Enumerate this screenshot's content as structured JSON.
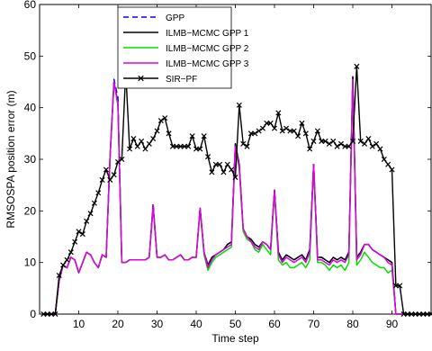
{
  "chart_data": {
    "type": "line",
    "title": "",
    "xlabel": "Time step",
    "ylabel": "RMSOSPA position error (m)",
    "xlim": [
      0,
      100
    ],
    "ylim": [
      0,
      60
    ],
    "xticks": [
      10,
      20,
      30,
      40,
      50,
      60,
      70,
      80,
      90
    ],
    "yticks": [
      0,
      10,
      20,
      30,
      40,
      50,
      60
    ],
    "grid": false,
    "legend_position": "top-center",
    "x": [
      1,
      2,
      3,
      4,
      5,
      6,
      7,
      8,
      9,
      10,
      11,
      12,
      13,
      14,
      15,
      16,
      17,
      18,
      19,
      20,
      21,
      22,
      23,
      24,
      25,
      26,
      27,
      28,
      29,
      30,
      31,
      32,
      33,
      34,
      35,
      36,
      37,
      38,
      39,
      40,
      41,
      42,
      43,
      44,
      45,
      46,
      47,
      48,
      49,
      50,
      51,
      52,
      53,
      54,
      55,
      56,
      57,
      58,
      59,
      60,
      61,
      62,
      63,
      64,
      65,
      66,
      67,
      68,
      69,
      70,
      71,
      72,
      73,
      74,
      75,
      76,
      77,
      78,
      79,
      80,
      81,
      82,
      83,
      84,
      85,
      86,
      87,
      88,
      89,
      90,
      91,
      92,
      93,
      94,
      95,
      96,
      97,
      98,
      99,
      100
    ],
    "series": [
      {
        "name": "GPP",
        "color": "#0000ff",
        "dash": "dashed",
        "marker": "none",
        "values": [
          0,
          0,
          0,
          0,
          6.5,
          9.5,
          9,
          11,
          10.5,
          8,
          10,
          12,
          11.5,
          10,
          9,
          11.5,
          11,
          30.5,
          45.5,
          42,
          10,
          10,
          10.5,
          10.5,
          10.5,
          10.5,
          10.5,
          11,
          21.5,
          11,
          11,
          11.5,
          10.5,
          10.5,
          11,
          11.5,
          10.5,
          10.5,
          11,
          11,
          20.5,
          12,
          9.5,
          11,
          11.5,
          12,
          12.5,
          13.5,
          14,
          33,
          29,
          16.5,
          15,
          14.5,
          13.5,
          13,
          14,
          13.5,
          12.5,
          24,
          12,
          10.5,
          11.5,
          11,
          10.5,
          11,
          11.5,
          10.5,
          12.5,
          29,
          11,
          11,
          10.5,
          10,
          11,
          10.5,
          11,
          10.5,
          12,
          46,
          11,
          12,
          13.5,
          13.5,
          12.5,
          12,
          11.5,
          11,
          10.5,
          10,
          0,
          0,
          0,
          0,
          0,
          0,
          0,
          0,
          0,
          0
        ]
      },
      {
        "name": "ILMB−MCMC GPP 1",
        "color": "#000000",
        "dash": "solid",
        "marker": "none",
        "values": [
          0,
          0,
          0,
          0,
          6.5,
          9.5,
          9,
          11,
          10.5,
          8,
          10,
          12,
          11.5,
          10,
          9,
          11.5,
          11,
          30.5,
          45,
          41,
          10,
          10,
          10.5,
          10.5,
          10.5,
          10.5,
          10.5,
          11,
          21,
          11,
          11,
          11.5,
          10.5,
          10.5,
          11,
          11.5,
          10.5,
          10.5,
          11,
          11,
          20.5,
          12,
          9.5,
          11,
          11.5,
          12,
          12.5,
          13.5,
          14,
          33,
          29,
          16.5,
          15,
          14.5,
          13.5,
          13,
          14,
          13.5,
          12.5,
          24,
          12,
          10.5,
          11.5,
          11,
          10.5,
          11,
          11.5,
          10.5,
          12.5,
          29,
          11,
          11,
          10.5,
          10,
          11,
          10.5,
          11,
          10.5,
          12,
          46,
          11,
          12,
          13.5,
          13.5,
          12.5,
          12,
          11.5,
          11,
          10.5,
          10,
          0,
          0,
          0,
          0,
          0,
          0,
          0,
          0,
          0,
          0
        ]
      },
      {
        "name": "ILMB−MCMC GPP 2",
        "color": "#00e000",
        "dash": "solid",
        "marker": "none",
        "values": [
          0,
          0,
          0,
          0,
          6.5,
          9.5,
          9,
          11,
          10.5,
          8,
          10,
          12,
          11.5,
          10,
          9,
          11.5,
          11,
          30.5,
          45,
          40.5,
          10,
          10,
          10.5,
          10.5,
          10.5,
          10.5,
          10.5,
          11,
          20.5,
          11,
          11,
          11.5,
          10.5,
          10.5,
          11,
          11.5,
          10.5,
          10.5,
          11,
          11,
          20,
          11.5,
          8.5,
          10,
          11,
          11.5,
          12,
          12.5,
          13,
          32.5,
          28,
          16,
          14.5,
          14,
          12.5,
          12,
          13.5,
          12.5,
          11.5,
          23.5,
          10.5,
          9.5,
          10,
          9,
          9,
          9.5,
          10,
          9,
          10.5,
          28.5,
          10,
          10,
          9.5,
          8.5,
          9.5,
          9,
          9.5,
          8.5,
          10,
          45.5,
          9.5,
          10.5,
          12,
          11,
          10,
          9.5,
          9,
          9,
          8,
          8.5,
          0,
          0,
          0,
          0,
          0,
          0,
          0,
          0,
          0,
          0
        ]
      },
      {
        "name": "ILMB−MCMC GPP 3",
        "color": "#e000e0",
        "dash": "solid",
        "marker": "none",
        "values": [
          0,
          0,
          0,
          0,
          6.5,
          9.5,
          9,
          11,
          10.5,
          8,
          10,
          12,
          11.5,
          10,
          9,
          11.5,
          11,
          30.5,
          45,
          40.5,
          10,
          10,
          10.5,
          10.5,
          10.5,
          10.5,
          10.5,
          11,
          21,
          11,
          11,
          11.5,
          10.5,
          10.5,
          11,
          11.5,
          10.5,
          10.5,
          11,
          11,
          20.5,
          12,
          9,
          10.5,
          11.5,
          12,
          12.5,
          13,
          13.5,
          32.5,
          28.5,
          16.5,
          15,
          14,
          13,
          12.5,
          14,
          13.5,
          12.5,
          24,
          11.5,
          10,
          11,
          10.5,
          10,
          10.5,
          11,
          10,
          12,
          29,
          10.5,
          10.5,
          10,
          9.5,
          10.5,
          10,
          10.5,
          10,
          11.5,
          45.5,
          10.5,
          11.5,
          13.5,
          13.5,
          12.5,
          12,
          11.5,
          11,
          10,
          9.5,
          0,
          0,
          0,
          0,
          0,
          0,
          0,
          0,
          0,
          0
        ]
      },
      {
        "name": "SIR−PF",
        "color": "#000000",
        "dash": "solid",
        "marker": "x",
        "values": [
          0,
          0,
          0,
          0,
          7.5,
          9.5,
          10.5,
          12,
          14,
          16,
          15.5,
          18,
          19.5,
          21.5,
          23.5,
          26,
          28,
          26,
          27,
          29.5,
          30,
          47,
          32,
          34,
          32.5,
          33.5,
          32,
          33,
          34,
          35.5,
          37.5,
          38,
          35,
          32.5,
          32.5,
          32.5,
          32.5,
          32.5,
          34.5,
          32,
          32,
          34.5,
          30.5,
          27.5,
          29,
          29,
          27.5,
          29,
          28,
          26.5,
          40.5,
          33,
          32.5,
          35,
          35,
          35.5,
          36,
          37,
          37,
          36,
          39,
          35.5,
          36,
          35.5,
          35.5,
          34.5,
          37,
          35,
          32,
          33.5,
          35.5,
          33.5,
          33.5,
          33,
          33.5,
          32.5,
          33,
          32.5,
          32.5,
          33.5,
          48,
          33.5,
          33,
          34,
          32.5,
          33,
          32,
          30,
          29,
          28,
          5.5,
          5.5,
          0,
          0,
          0,
          0,
          0,
          0,
          0,
          0
        ]
      }
    ]
  }
}
